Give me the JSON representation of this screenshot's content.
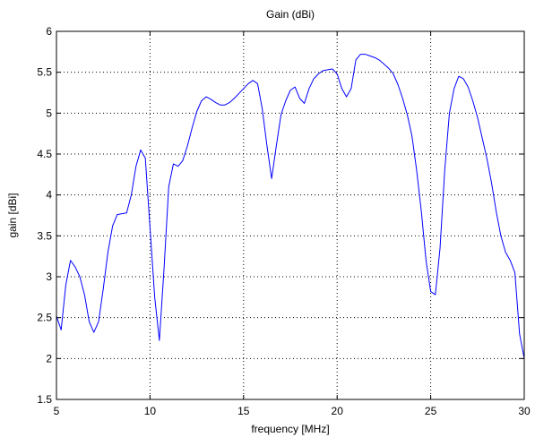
{
  "chart_data": {
    "type": "line",
    "title": "Gain (dBi)",
    "xlabel": "frequency [MHz]",
    "ylabel": "gain [dBi]",
    "xlim": [
      5,
      30
    ],
    "ylim": [
      1.5,
      6
    ],
    "xticks": [
      5,
      10,
      15,
      20,
      25,
      30
    ],
    "yticks": [
      1.5,
      2,
      2.5,
      3,
      3.5,
      4,
      4.5,
      5,
      5.5,
      6
    ],
    "xtick_labels": [
      "5",
      "10",
      "15",
      "20",
      "25",
      "30"
    ],
    "ytick_labels": [
      "1.5",
      "2",
      "2.5",
      "3",
      "3.5",
      "4",
      "4.5",
      "5",
      "5.5",
      "6"
    ],
    "grid": true,
    "grid_style": "dotted",
    "legend": "none",
    "colors": {
      "line": "#0000ff",
      "axes": "#000000",
      "grid": "#000000",
      "background": "#ffffff"
    },
    "series": [
      {
        "x": [
          5.0,
          5.25,
          5.5,
          5.75,
          6.0,
          6.25,
          6.5,
          6.75,
          7.0,
          7.25,
          7.5,
          7.75,
          8.0,
          8.25,
          8.5,
          8.75,
          9.0,
          9.25,
          9.5,
          9.75,
          10.0,
          10.25,
          10.5,
          10.75,
          11.0,
          11.25,
          11.5,
          11.75,
          12.0,
          12.25,
          12.5,
          12.75,
          13.0,
          13.25,
          13.5,
          13.75,
          14.0,
          14.25,
          14.5,
          14.75,
          15.0,
          15.25,
          15.5,
          15.75,
          16.0,
          16.25,
          16.5,
          16.75,
          17.0,
          17.25,
          17.5,
          17.75,
          18.0,
          18.25,
          18.5,
          18.75,
          19.0,
          19.25,
          19.5,
          19.75,
          20.0,
          20.25,
          20.5,
          20.75,
          21.0,
          21.25,
          21.5,
          21.75,
          22.0,
          22.25,
          22.5,
          22.75,
          23.0,
          23.25,
          23.5,
          23.75,
          24.0,
          24.25,
          24.5,
          24.75,
          25.0,
          25.25,
          25.5,
          25.75,
          26.0,
          26.25,
          26.5,
          26.75,
          27.0,
          27.25,
          27.5,
          27.75,
          28.0,
          28.25,
          28.5,
          28.75,
          29.0,
          29.25,
          29.5,
          29.75,
          30.0
        ],
        "y": [
          2.52,
          2.35,
          2.9,
          3.2,
          3.12,
          3.0,
          2.78,
          2.45,
          2.32,
          2.45,
          2.85,
          3.3,
          3.62,
          3.76,
          3.77,
          3.78,
          4.0,
          4.35,
          4.55,
          4.45,
          3.6,
          2.75,
          2.22,
          3.1,
          4.1,
          4.38,
          4.35,
          4.42,
          4.6,
          4.82,
          5.02,
          5.15,
          5.2,
          5.17,
          5.13,
          5.1,
          5.1,
          5.13,
          5.18,
          5.24,
          5.3,
          5.36,
          5.4,
          5.36,
          5.05,
          4.6,
          4.2,
          4.6,
          4.98,
          5.15,
          5.28,
          5.32,
          5.18,
          5.12,
          5.3,
          5.42,
          5.48,
          5.52,
          5.53,
          5.54,
          5.48,
          5.3,
          5.2,
          5.3,
          5.65,
          5.72,
          5.72,
          5.7,
          5.68,
          5.65,
          5.6,
          5.55,
          5.48,
          5.35,
          5.18,
          4.98,
          4.72,
          4.3,
          3.8,
          3.2,
          2.82,
          2.78,
          3.35,
          4.3,
          5.0,
          5.3,
          5.45,
          5.42,
          5.32,
          5.15,
          4.95,
          4.7,
          4.45,
          4.15,
          3.8,
          3.5,
          3.3,
          3.2,
          3.05,
          2.3,
          2.0
        ]
      }
    ]
  }
}
